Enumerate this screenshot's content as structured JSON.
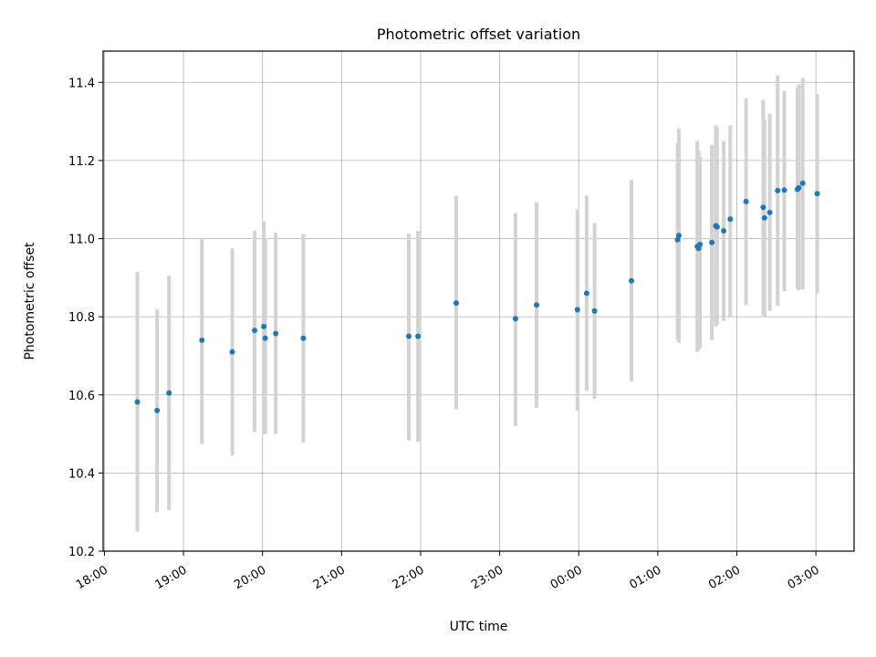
{
  "chart_data": {
    "type": "scatter",
    "title": "Photometric offset variation",
    "xlabel": "UTC time",
    "ylabel": "Photometric offset",
    "x_ticks": [
      "18:00",
      "19:00",
      "20:00",
      "21:00",
      "22:00",
      "23:00",
      "00:00",
      "01:00",
      "02:00",
      "03:00"
    ],
    "y_ticks": [
      "10.2",
      "10.4",
      "10.6",
      "10.8",
      "11.0",
      "11.2",
      "11.4"
    ],
    "xlim": [
      "17:59",
      "03:29"
    ],
    "ylim": [
      10.2,
      11.48
    ],
    "grid": true,
    "point_color": "#1f77b4",
    "errorbar_color": "#d3d3d3",
    "points": [
      {
        "t": "18:25",
        "y": 10.582,
        "lo": 10.25,
        "hi": 10.915
      },
      {
        "t": "18:40",
        "y": 10.56,
        "lo": 10.3,
        "hi": 10.82
      },
      {
        "t": "18:49",
        "y": 10.605,
        "lo": 10.305,
        "hi": 10.905
      },
      {
        "t": "19:14",
        "y": 10.74,
        "lo": 10.475,
        "hi": 11.0
      },
      {
        "t": "19:37",
        "y": 10.71,
        "lo": 10.445,
        "hi": 10.975
      },
      {
        "t": "19:54",
        "y": 10.765,
        "lo": 10.505,
        "hi": 11.02
      },
      {
        "t": "20:01",
        "y": 10.775,
        "lo": 10.5,
        "hi": 11.045
      },
      {
        "t": "20:02",
        "y": 10.745,
        "lo": 10.5,
        "hi": 11.0
      },
      {
        "t": "20:10",
        "y": 10.757,
        "lo": 10.5,
        "hi": 11.015
      },
      {
        "t": "20:31",
        "y": 10.745,
        "lo": 10.478,
        "hi": 11.012
      },
      {
        "t": "21:51",
        "y": 10.75,
        "lo": 10.483,
        "hi": 11.013
      },
      {
        "t": "21:58",
        "y": 10.75,
        "lo": 10.48,
        "hi": 11.02
      },
      {
        "t": "22:27",
        "y": 10.835,
        "lo": 10.563,
        "hi": 11.11
      },
      {
        "t": "23:12",
        "y": 10.795,
        "lo": 10.52,
        "hi": 11.065
      },
      {
        "t": "23:28",
        "y": 10.83,
        "lo": 10.567,
        "hi": 11.093
      },
      {
        "t": "23:59",
        "y": 10.818,
        "lo": 10.56,
        "hi": 11.075
      },
      {
        "t": "00:06",
        "y": 10.86,
        "lo": 10.61,
        "hi": 11.11
      },
      {
        "t": "00:12",
        "y": 10.815,
        "lo": 10.59,
        "hi": 11.04
      },
      {
        "t": "00:40",
        "y": 10.892,
        "lo": 10.635,
        "hi": 11.15
      },
      {
        "t": "01:15",
        "y": 10.997,
        "lo": 10.74,
        "hi": 11.245
      },
      {
        "t": "01:16",
        "y": 11.008,
        "lo": 10.733,
        "hi": 11.283
      },
      {
        "t": "01:30",
        "y": 10.98,
        "lo": 10.71,
        "hi": 11.25
      },
      {
        "t": "01:31",
        "y": 10.975,
        "lo": 10.715,
        "hi": 11.225
      },
      {
        "t": "01:32",
        "y": 10.985,
        "lo": 10.72,
        "hi": 11.21
      },
      {
        "t": "01:41",
        "y": 10.99,
        "lo": 10.74,
        "hi": 11.24
      },
      {
        "t": "01:44",
        "y": 11.033,
        "lo": 10.775,
        "hi": 11.29
      },
      {
        "t": "01:45",
        "y": 11.03,
        "lo": 10.78,
        "hi": 11.285
      },
      {
        "t": "01:50",
        "y": 11.02,
        "lo": 10.79,
        "hi": 11.25
      },
      {
        "t": "01:55",
        "y": 11.05,
        "lo": 10.8,
        "hi": 11.29
      },
      {
        "t": "02:07",
        "y": 11.095,
        "lo": 10.83,
        "hi": 11.36
      },
      {
        "t": "02:20",
        "y": 11.08,
        "lo": 10.805,
        "hi": 11.355
      },
      {
        "t": "02:21",
        "y": 11.053,
        "lo": 10.8,
        "hi": 11.305
      },
      {
        "t": "02:25",
        "y": 11.067,
        "lo": 10.815,
        "hi": 11.32
      },
      {
        "t": "02:31",
        "y": 11.123,
        "lo": 10.828,
        "hi": 11.418
      },
      {
        "t": "02:36",
        "y": 11.124,
        "lo": 10.865,
        "hi": 11.378
      },
      {
        "t": "02:46",
        "y": 11.126,
        "lo": 10.872,
        "hi": 11.385
      },
      {
        "t": "02:47",
        "y": 11.13,
        "lo": 10.868,
        "hi": 11.395
      },
      {
        "t": "02:50",
        "y": 11.142,
        "lo": 10.87,
        "hi": 11.412
      },
      {
        "t": "03:01",
        "y": 11.115,
        "lo": 10.86,
        "hi": 11.37
      }
    ]
  }
}
